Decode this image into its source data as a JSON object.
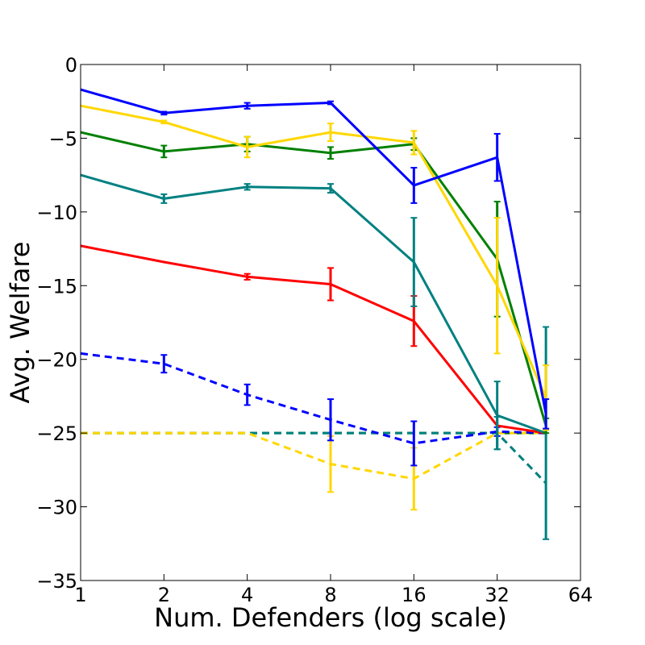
{
  "chart_data": {
    "type": "line",
    "title": "",
    "xlabel": "Num. Defenders (log scale)",
    "ylabel": "Avg. Welfare",
    "xscale": "log2",
    "xlim": [
      1,
      64
    ],
    "ylim": [
      -35,
      0
    ],
    "x_ticks": [
      1,
      2,
      4,
      8,
      16,
      32,
      64
    ],
    "x_tick_labels": [
      "1",
      "2",
      "4",
      "8",
      "16",
      "32",
      "64"
    ],
    "y_ticks": [
      0,
      -5,
      -10,
      -15,
      -20,
      -25,
      -30,
      -35
    ],
    "y_tick_labels": [
      "0",
      "−5",
      "−10",
      "−15",
      "−20",
      "−25",
      "−30",
      "−35"
    ],
    "grid": false,
    "legend": "none",
    "series": [
      {
        "name": "blue-solid",
        "color": "#0000ff",
        "dash": "solid",
        "x": [
          1,
          2,
          4,
          8,
          16,
          32,
          48
        ],
        "y": [
          -1.7,
          -3.3,
          -2.8,
          -2.6,
          -8.2,
          -6.3,
          -23.7
        ],
        "err": [
          0,
          0.1,
          0.2,
          0.1,
          1.2,
          1.6,
          1.0
        ]
      },
      {
        "name": "gold-solid",
        "color": "#ffd700",
        "dash": "solid",
        "x": [
          1,
          2,
          4,
          8,
          16,
          32,
          48
        ],
        "y": [
          -2.8,
          -3.9,
          -5.6,
          -4.6,
          -5.3,
          -15.0,
          -22.6
        ],
        "err": [
          0,
          0.1,
          0.7,
          0.6,
          0.8,
          4.6,
          2.2
        ]
      },
      {
        "name": "green-solid",
        "color": "#008000",
        "dash": "solid",
        "x": [
          1,
          2,
          4,
          8,
          16,
          32,
          48
        ],
        "y": [
          -4.6,
          -5.9,
          -5.4,
          -6.0,
          -5.4,
          -13.2,
          -24.5
        ],
        "err": [
          0,
          0.4,
          0.5,
          0.4,
          0.4,
          3.9,
          0.5
        ]
      },
      {
        "name": "teal-solid",
        "color": "#008080",
        "dash": "solid",
        "x": [
          1,
          2,
          4,
          8,
          16,
          32,
          48
        ],
        "y": [
          -7.5,
          -9.1,
          -8.3,
          -8.4,
          -13.4,
          -23.8,
          -25.0
        ],
        "err": [
          0,
          0.3,
          0.2,
          0.3,
          3.0,
          2.3,
          7.2
        ]
      },
      {
        "name": "red-solid",
        "color": "#ff0000",
        "dash": "solid",
        "x": [
          1,
          2,
          4,
          8,
          16,
          32,
          48
        ],
        "y": [
          -12.3,
          -13.4,
          -14.4,
          -14.9,
          -17.4,
          -24.5,
          -25.0
        ],
        "err": [
          0,
          0,
          0.2,
          1.1,
          1.7,
          0,
          0
        ]
      },
      {
        "name": "blue-dashed",
        "color": "#0000ff",
        "dash": "dashed",
        "x": [
          1,
          2,
          4,
          8,
          16,
          32,
          48
        ],
        "y": [
          -19.6,
          -20.3,
          -22.4,
          -24.1,
          -25.7,
          -24.9,
          -25.0
        ],
        "err": [
          0,
          0.6,
          0.7,
          1.4,
          1.5,
          0.3,
          0
        ]
      },
      {
        "name": "gold-dashed",
        "color": "#ffd700",
        "dash": "dashed",
        "x": [
          1,
          2,
          4,
          8,
          16,
          32,
          48
        ],
        "y": [
          -25.0,
          -25.0,
          -25.0,
          -27.1,
          -28.1,
          -25.0,
          -25.0
        ],
        "err": [
          0,
          0,
          0,
          1.9,
          2.1,
          0,
          0
        ]
      },
      {
        "name": "teal-dashed",
        "color": "#008080",
        "dash": "dashed",
        "x": [
          1,
          2,
          4,
          8,
          16,
          32,
          48
        ],
        "y": [
          -25.0,
          -25.0,
          -25.0,
          -25.0,
          -25.0,
          -25.0,
          -28.4
        ],
        "err": [
          0,
          0,
          0,
          0,
          0,
          1.1,
          0
        ]
      },
      {
        "name": "green-dashed",
        "color": "#008000",
        "dash": "dashed",
        "x": [
          1,
          2,
          4,
          8,
          16,
          32,
          48
        ],
        "y": [
          -25.0,
          -25.0,
          -25.0,
          -25.0,
          -25.0,
          -25.0,
          -25.0
        ],
        "err": [
          0,
          0,
          0,
          0,
          0,
          0,
          0
        ]
      }
    ]
  }
}
